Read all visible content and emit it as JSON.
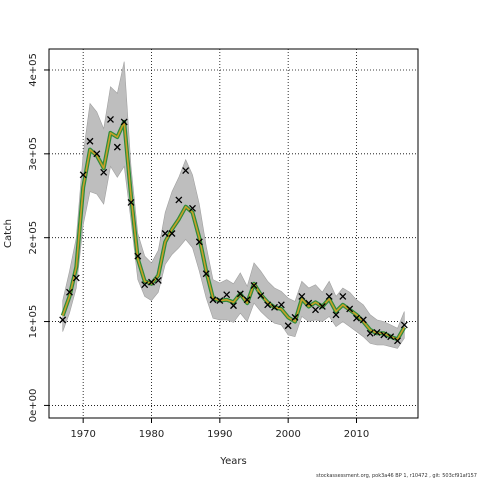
{
  "chart_data": {
    "type": "line",
    "xlabel": "Years",
    "ylabel": "Catch",
    "xlim": [
      1965,
      2019
    ],
    "ylim": [
      -15000,
      425000
    ],
    "x_ticks": [
      1970,
      1980,
      1990,
      2000,
      2010
    ],
    "x_tick_labels": [
      "1970",
      "1980",
      "1990",
      "2000",
      "2010"
    ],
    "y_ticks": [
      0,
      100000,
      200000,
      300000,
      400000
    ],
    "y_tick_labels": [
      "0e+00",
      "1e+05",
      "2e+05",
      "3e+05",
      "4e+05"
    ],
    "grid": "dotted",
    "colors": {
      "band": "#bebebe",
      "fitted_outer": "#2e8b3a",
      "fitted_inner": "#c8a028",
      "observed": "#000000"
    },
    "years": [
      1967,
      1968,
      1969,
      1970,
      1971,
      1972,
      1973,
      1974,
      1975,
      1976,
      1977,
      1978,
      1979,
      1980,
      1981,
      1982,
      1983,
      1984,
      1985,
      1986,
      1987,
      1988,
      1989,
      1990,
      1991,
      1992,
      1993,
      1994,
      1995,
      1996,
      1997,
      1998,
      1999,
      2000,
      2001,
      2002,
      2003,
      2004,
      2005,
      2006,
      2007,
      2008,
      2009,
      2010,
      2011,
      2012,
      2013,
      2014,
      2015,
      2016,
      2017
    ],
    "fitted": [
      107000,
      130000,
      165000,
      260000,
      305000,
      298000,
      283000,
      325000,
      320000,
      338000,
      250000,
      175000,
      148000,
      145000,
      155000,
      195000,
      210000,
      222000,
      237000,
      230000,
      200000,
      160000,
      128000,
      125000,
      126000,
      123000,
      133000,
      122000,
      145000,
      132000,
      123000,
      117000,
      115000,
      105000,
      100000,
      127000,
      118000,
      123000,
      118000,
      127000,
      112000,
      120000,
      114000,
      108000,
      100000,
      90000,
      86000,
      86000,
      82000,
      79000,
      93000
    ],
    "upper": [
      125000,
      160000,
      200000,
      300000,
      360000,
      350000,
      330000,
      380000,
      372000,
      410000,
      285000,
      205000,
      178000,
      170000,
      185000,
      230000,
      255000,
      272000,
      293000,
      275000,
      240000,
      190000,
      150000,
      146000,
      150000,
      145000,
      158000,
      142000,
      170000,
      160000,
      148000,
      140000,
      136000,
      128000,
      124000,
      148000,
      140000,
      144000,
      135000,
      148000,
      130000,
      140000,
      135000,
      126000,
      120000,
      108000,
      102000,
      100000,
      96000,
      92000,
      112000
    ],
    "lower": [
      88000,
      110000,
      140000,
      215000,
      255000,
      252000,
      240000,
      285000,
      272000,
      285000,
      220000,
      150000,
      130000,
      125000,
      135000,
      168000,
      180000,
      188000,
      198000,
      188000,
      160000,
      128000,
      104000,
      102000,
      102000,
      99000,
      110000,
      100000,
      122000,
      112000,
      104000,
      98000,
      96000,
      84000,
      82000,
      106000,
      100000,
      102000,
      100000,
      106000,
      94000,
      100000,
      94000,
      88000,
      82000,
      74000,
      72000,
      72000,
      70000,
      68000,
      80000
    ],
    "observed": [
      102000,
      135000,
      152000,
      275000,
      315000,
      300000,
      278000,
      341000,
      308000,
      338000,
      242000,
      178000,
      144000,
      147000,
      149000,
      205000,
      205000,
      245000,
      280000,
      235000,
      195000,
      157000,
      126000,
      125000,
      132000,
      119000,
      133000,
      126000,
      143000,
      131000,
      120000,
      117000,
      120000,
      95000,
      105000,
      130000,
      122000,
      114000,
      118000,
      130000,
      108000,
      130000,
      115000,
      104000,
      102000,
      86000,
      87000,
      84000,
      82000,
      77000,
      96000
    ]
  },
  "footnote": "stockassessment.org, pok3a46 BP 1, r10472 , git: 503cf91af157"
}
